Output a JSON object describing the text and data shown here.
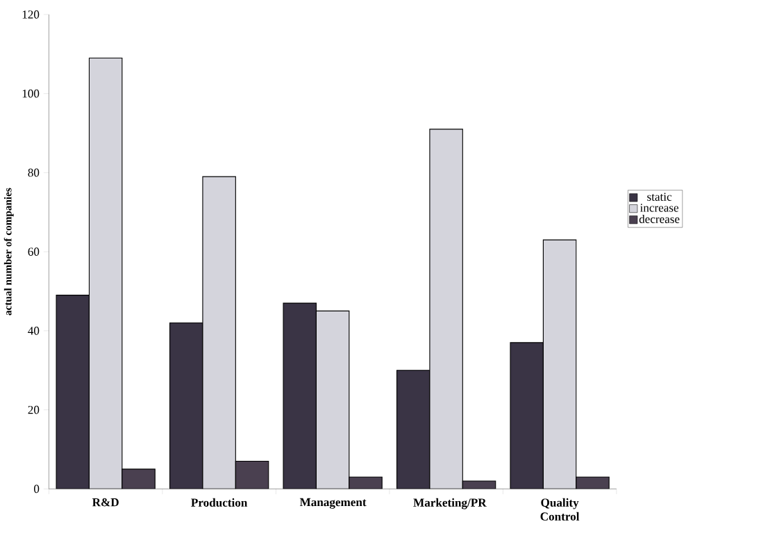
{
  "chart_data": {
    "type": "bar",
    "ylabel": "actual number of companies",
    "categories": [
      "R&D",
      "Production",
      "Management",
      "Marketing/PR",
      "Quality Control"
    ],
    "series": [
      {
        "name": "static",
        "color": "#3a3445",
        "values": [
          49,
          42,
          47,
          30,
          37
        ]
      },
      {
        "name": "increase",
        "color": "#d4d4dc",
        "values": [
          109,
          79,
          45,
          91,
          63
        ]
      },
      {
        "name": "decrease",
        "color": "#4a4050",
        "values": [
          5,
          7,
          3,
          2,
          3
        ]
      }
    ],
    "ylim": [
      0,
      120
    ],
    "yticks": [
      0,
      20,
      40,
      60,
      80,
      100,
      120
    ],
    "grid": false,
    "legend": "right"
  }
}
